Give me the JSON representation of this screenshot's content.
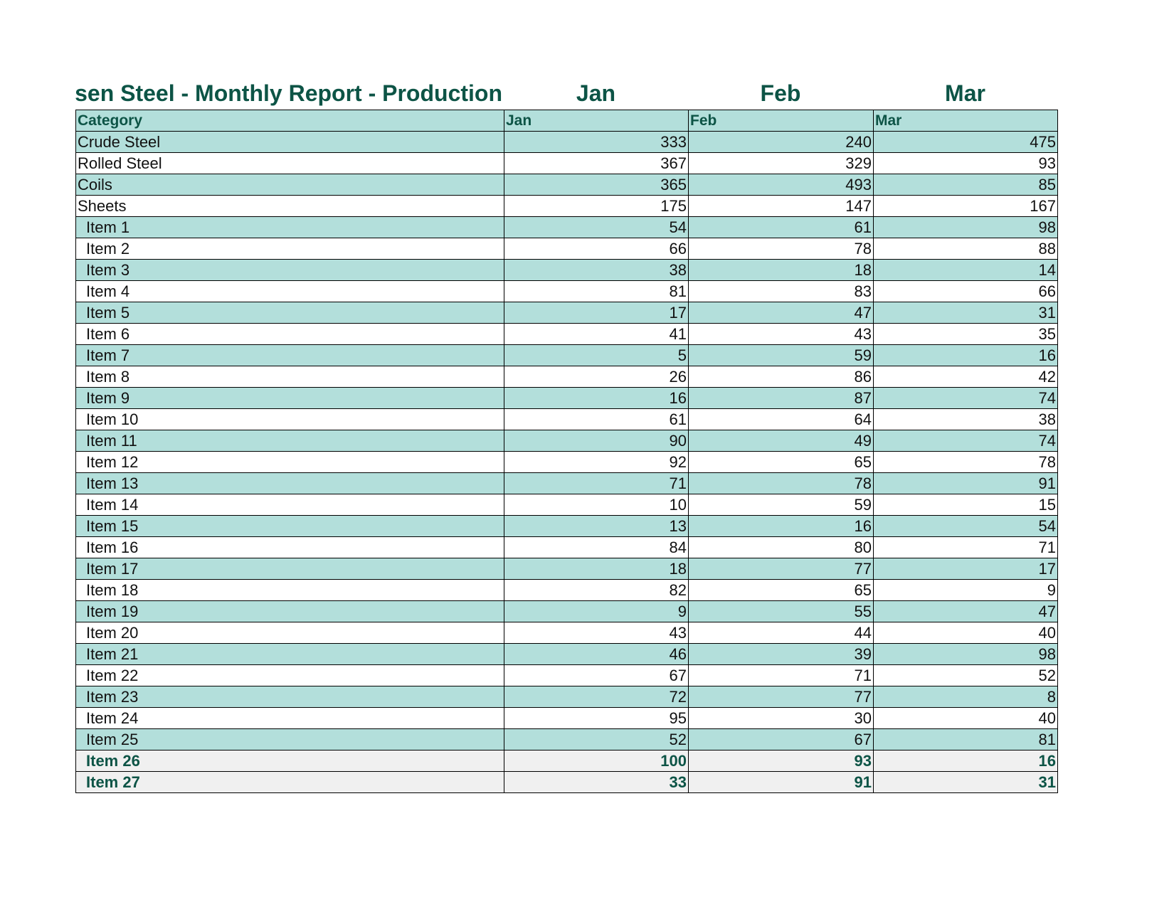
{
  "title": {
    "main": "Thyssen Steel - Monthly Report - Production",
    "months": [
      "Jan",
      "Feb",
      "Mar"
    ]
  },
  "header": {
    "category": "Category",
    "months": [
      "Jan",
      "Feb",
      "Mar"
    ]
  },
  "rows": [
    {
      "label": "Crude Steel",
      "values": [
        "333",
        "240",
        "475"
      ],
      "indent": false,
      "style": "shade"
    },
    {
      "label": "Rolled Steel",
      "values": [
        "367",
        "329",
        "93"
      ],
      "indent": false,
      "style": "plain"
    },
    {
      "label": "Coils",
      "values": [
        "365",
        "493",
        "85"
      ],
      "indent": false,
      "style": "shade"
    },
    {
      "label": "Sheets",
      "values": [
        "175",
        "147",
        "167"
      ],
      "indent": false,
      "style": "plain"
    },
    {
      "label": "Item 1",
      "values": [
        "54",
        "61",
        "98"
      ],
      "indent": true,
      "style": "shade"
    },
    {
      "label": "Item 2",
      "values": [
        "66",
        "78",
        "88"
      ],
      "indent": true,
      "style": "plain"
    },
    {
      "label": "Item 3",
      "values": [
        "38",
        "18",
        "14"
      ],
      "indent": true,
      "style": "shade"
    },
    {
      "label": "Item 4",
      "values": [
        "81",
        "83",
        "66"
      ],
      "indent": true,
      "style": "plain"
    },
    {
      "label": "Item 5",
      "values": [
        "17",
        "47",
        "31"
      ],
      "indent": true,
      "style": "shade"
    },
    {
      "label": "Item 6",
      "values": [
        "41",
        "43",
        "35"
      ],
      "indent": true,
      "style": "plain"
    },
    {
      "label": "Item 7",
      "values": [
        "5",
        "59",
        "16"
      ],
      "indent": true,
      "style": "shade"
    },
    {
      "label": "Item 8",
      "values": [
        "26",
        "86",
        "42"
      ],
      "indent": true,
      "style": "plain"
    },
    {
      "label": "Item 9",
      "values": [
        "16",
        "87",
        "74"
      ],
      "indent": true,
      "style": "shade"
    },
    {
      "label": "Item 10",
      "values": [
        "61",
        "64",
        "38"
      ],
      "indent": true,
      "style": "plain"
    },
    {
      "label": "Item 11",
      "values": [
        "90",
        "49",
        "74"
      ],
      "indent": true,
      "style": "shade"
    },
    {
      "label": "Item 12",
      "values": [
        "92",
        "65",
        "78"
      ],
      "indent": true,
      "style": "plain"
    },
    {
      "label": "Item 13",
      "values": [
        "71",
        "78",
        "91"
      ],
      "indent": true,
      "style": "shade"
    },
    {
      "label": "Item 14",
      "values": [
        "10",
        "59",
        "15"
      ],
      "indent": true,
      "style": "plain"
    },
    {
      "label": "Item 15",
      "values": [
        "13",
        "16",
        "54"
      ],
      "indent": true,
      "style": "shade"
    },
    {
      "label": "Item 16",
      "values": [
        "84",
        "80",
        "71"
      ],
      "indent": true,
      "style": "plain"
    },
    {
      "label": "Item 17",
      "values": [
        "18",
        "77",
        "17"
      ],
      "indent": true,
      "style": "shade"
    },
    {
      "label": "Item 18",
      "values": [
        "82",
        "65",
        "9"
      ],
      "indent": true,
      "style": "plain"
    },
    {
      "label": "Item 19",
      "values": [
        "9",
        "55",
        "47"
      ],
      "indent": true,
      "style": "shade"
    },
    {
      "label": "Item 20",
      "values": [
        "43",
        "44",
        "40"
      ],
      "indent": true,
      "style": "plain"
    },
    {
      "label": "Item 21",
      "values": [
        "46",
        "39",
        "98"
      ],
      "indent": true,
      "style": "shade"
    },
    {
      "label": "Item 22",
      "values": [
        "67",
        "71",
        "52"
      ],
      "indent": true,
      "style": "plain"
    },
    {
      "label": "Item 23",
      "values": [
        "72",
        "77",
        "8"
      ],
      "indent": true,
      "style": "shade"
    },
    {
      "label": "Item 24",
      "values": [
        "95",
        "30",
        "40"
      ],
      "indent": true,
      "style": "plain"
    },
    {
      "label": "Item 25",
      "values": [
        "52",
        "67",
        "81"
      ],
      "indent": true,
      "style": "shade"
    },
    {
      "label": "Item 26",
      "values": [
        "100",
        "93",
        "16"
      ],
      "indent": true,
      "style": "total"
    },
    {
      "label": "Item 27",
      "values": [
        "33",
        "91",
        "31"
      ],
      "indent": true,
      "style": "total"
    }
  ],
  "colors": {
    "accent": "#0d5446",
    "band": "#b3dfdb",
    "total_fill": "#f0f0f0"
  }
}
